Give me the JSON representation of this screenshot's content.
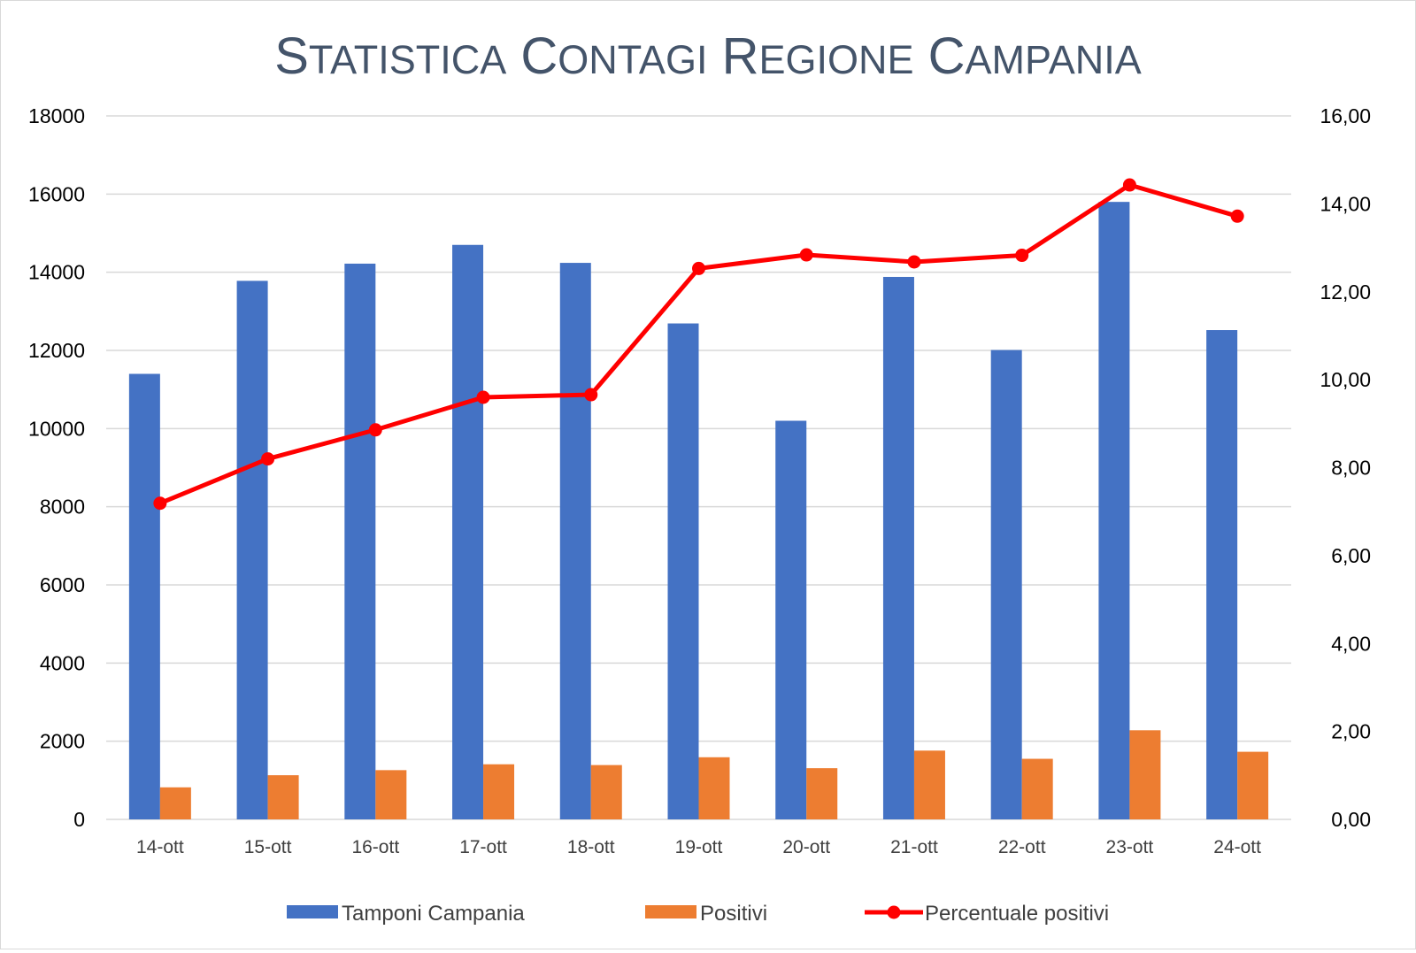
{
  "chart_data": {
    "type": "bar",
    "title": "Statistica Contagi Regione Campania",
    "categories": [
      "14-ott",
      "15-ott",
      "16-ott",
      "17-ott",
      "18-ott",
      "19-ott",
      "20-ott",
      "21-ott",
      "22-ott",
      "23-ott",
      "24-ott"
    ],
    "series": [
      {
        "name": "Tamponi Campania",
        "type": "bar",
        "axis": "left",
        "color": "#4472c4",
        "values": [
          11400,
          13780,
          14220,
          14700,
          14240,
          12690,
          10200,
          13880,
          12010,
          15800,
          12520
        ]
      },
      {
        "name": "Positivi",
        "type": "bar",
        "axis": "left",
        "color": "#ed7d31",
        "values": [
          820,
          1130,
          1260,
          1410,
          1390,
          1590,
          1310,
          1760,
          1550,
          2280,
          1730
        ]
      },
      {
        "name": "Percentuale positivi",
        "type": "line",
        "axis": "right",
        "color": "#ff0000",
        "values": [
          7.19,
          8.2,
          8.86,
          9.6,
          9.66,
          12.53,
          12.84,
          12.68,
          12.83,
          14.43,
          13.72
        ]
      }
    ],
    "y_left": {
      "min": 0,
      "max": 18000,
      "ticks": [
        "0",
        "2000",
        "4000",
        "6000",
        "8000",
        "10000",
        "12000",
        "14000",
        "16000",
        "18000"
      ]
    },
    "y_right": {
      "min": 0,
      "max": 16,
      "ticks": [
        "0,00",
        "2,00",
        "4,00",
        "6,00",
        "8,00",
        "10,00",
        "12,00",
        "14,00",
        "16,00"
      ]
    },
    "grid": true,
    "legend_position": "bottom"
  }
}
